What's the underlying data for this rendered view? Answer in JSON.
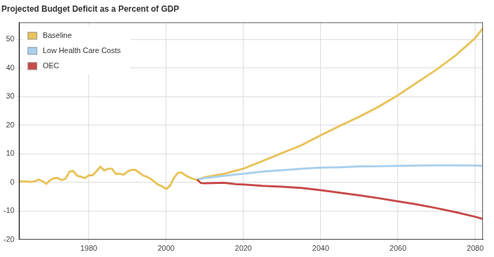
{
  "chart_data": {
    "type": "line",
    "title": "Projected Budget Deficit as a Percent of GDP",
    "x": [
      1962,
      1963,
      1964,
      1965,
      1966,
      1967,
      1968,
      1969,
      1970,
      1971,
      1972,
      1973,
      1974,
      1975,
      1976,
      1977,
      1978,
      1979,
      1980,
      1981,
      1982,
      1983,
      1984,
      1985,
      1986,
      1987,
      1988,
      1989,
      1990,
      1991,
      1992,
      1993,
      1994,
      1995,
      1996,
      1997,
      1998,
      1999,
      2000,
      2001,
      2002,
      2003,
      2004,
      2005,
      2006,
      2007,
      2008,
      2009,
      2010,
      2015,
      2018,
      2020,
      2025,
      2030,
      2035,
      2040,
      2045,
      2050,
      2055,
      2060,
      2065,
      2070,
      2075,
      2080,
      2082
    ],
    "series": [
      {
        "name": "Baseline",
        "color": "#e8c35a",
        "values": [
          0.5,
          0.3,
          0.3,
          0.2,
          0.4,
          1.0,
          0.5,
          -0.5,
          0.8,
          1.5,
          1.5,
          0.8,
          1.3,
          3.8,
          4.0,
          2.3,
          2.0,
          1.5,
          2.5,
          2.5,
          4.0,
          5.5,
          4.2,
          4.8,
          4.8,
          3.0,
          3.0,
          2.7,
          3.8,
          4.4,
          4.4,
          3.5,
          2.5,
          2.0,
          1.3,
          0.2,
          -0.8,
          -1.4,
          -2.3,
          -1.2,
          1.5,
          3.3,
          3.5,
          2.5,
          1.8,
          1.2,
          1.0,
          1.4,
          1.8,
          3.0,
          4.1,
          4.8,
          7.5,
          10.3,
          13.0,
          16.5,
          19.8,
          23.0,
          26.5,
          30.5,
          35.0,
          39.5,
          44.5,
          50.5,
          54.0
        ]
      },
      {
        "name": "Low Health Care Costs",
        "color": "#a9d0ee",
        "values": [
          null,
          null,
          null,
          null,
          null,
          null,
          null,
          null,
          null,
          null,
          null,
          null,
          null,
          null,
          null,
          null,
          null,
          null,
          null,
          null,
          null,
          null,
          null,
          null,
          null,
          null,
          null,
          null,
          null,
          null,
          null,
          null,
          null,
          null,
          null,
          null,
          null,
          null,
          null,
          null,
          null,
          null,
          null,
          null,
          null,
          null,
          1.0,
          1.3,
          1.5,
          2.3,
          2.8,
          3.0,
          3.8,
          4.3,
          4.8,
          5.2,
          5.3,
          5.6,
          5.7,
          5.8,
          5.9,
          6.0,
          6.0,
          5.9,
          5.8
        ]
      },
      {
        "name": "OEC",
        "color": "#c84a4a",
        "values": [
          null,
          null,
          null,
          null,
          null,
          null,
          null,
          null,
          null,
          null,
          null,
          null,
          null,
          null,
          null,
          null,
          null,
          null,
          null,
          null,
          null,
          null,
          null,
          null,
          null,
          null,
          null,
          null,
          null,
          null,
          null,
          null,
          null,
          null,
          null,
          null,
          null,
          null,
          null,
          null,
          null,
          null,
          null,
          null,
          null,
          null,
          1.0,
          -0.2,
          -0.3,
          -0.1,
          -0.6,
          -0.7,
          -1.2,
          -1.5,
          -1.9,
          -2.7,
          -3.6,
          -4.5,
          -5.5,
          -6.6,
          -7.7,
          -9.0,
          -10.4,
          -12.0,
          -12.8
        ]
      }
    ],
    "xlim": [
      1962,
      2082
    ],
    "xticks": [
      1980,
      2000,
      2020,
      2040,
      2060,
      2080
    ],
    "ylim": [
      -20,
      56
    ],
    "yticks": [
      -20,
      -10,
      0,
      10,
      20,
      30,
      40,
      50
    ],
    "grid": true,
    "legend": "upper left"
  }
}
